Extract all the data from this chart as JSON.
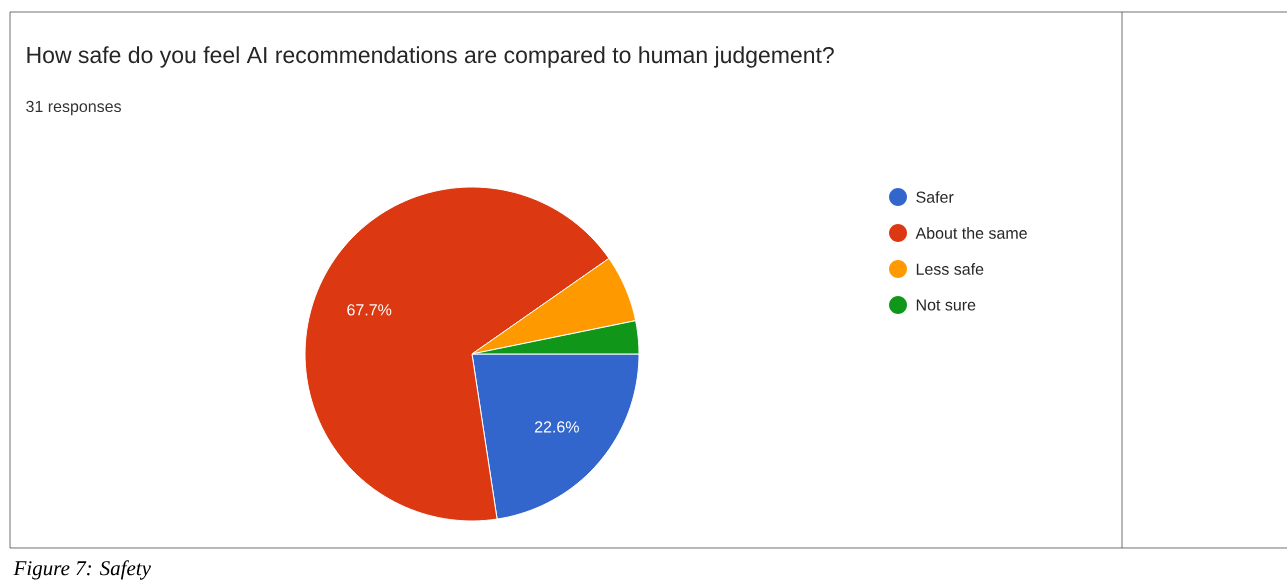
{
  "chart_data": {
    "type": "pie",
    "title": "How safe do you feel AI recommendations are compared to human judgement?",
    "subtitle": "31 responses",
    "categories": [
      "Safer",
      "About the same",
      "Less safe",
      "Not sure"
    ],
    "values": [
      22.6,
      67.7,
      6.5,
      3.2
    ],
    "colors": [
      "#3366cc",
      "#dc3912",
      "#ff9900",
      "#109618"
    ],
    "value_labels": [
      "22.6%",
      "67.7%",
      null,
      null
    ],
    "legend": "right",
    "annotations": [
      "*Figure 7: Safety*"
    ]
  }
}
